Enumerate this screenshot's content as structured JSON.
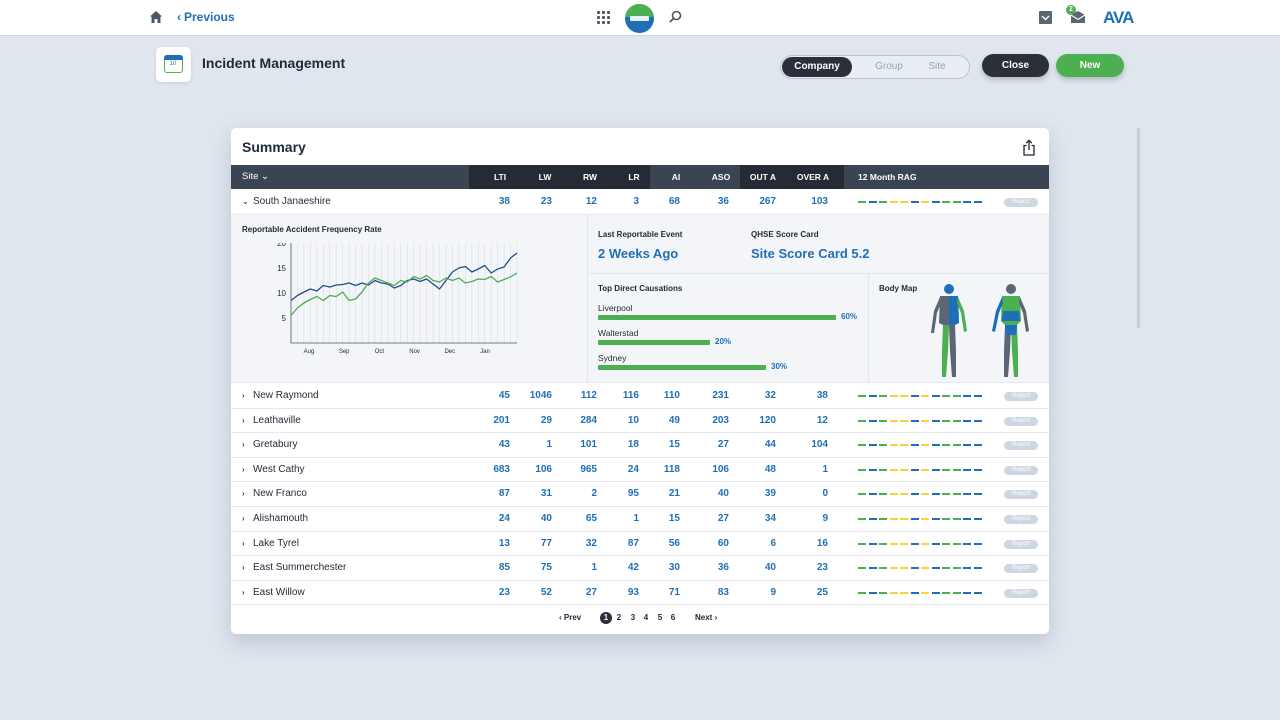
{
  "topbar": {
    "previous_label": "Previous",
    "brand_logo_text": "AVA",
    "mail_badge_count": "2"
  },
  "header": {
    "app_icon_text": "10",
    "title": "Incident Management",
    "scope_options": [
      "Company",
      "Group",
      "Site"
    ],
    "scope_selected": "Company",
    "close_label": "Close",
    "new_label": "New"
  },
  "summary": {
    "title": "Summary",
    "columns": {
      "site": "Site ⌄",
      "lti": "LTI",
      "lw": "LW",
      "rw": "RW",
      "lr": "LR",
      "ai": "AI",
      "aso": "ASO",
      "out_a": "OUT A",
      "over_a": "OVER A",
      "rag": "12 Month RAG"
    },
    "report_label": "Report",
    "rows": [
      {
        "site": "South Janaeshire",
        "expanded": true,
        "values": [
          "38",
          "23",
          "12",
          "3",
          "68",
          "36",
          "267",
          "103"
        ]
      },
      {
        "site": "New Raymond",
        "expanded": false,
        "values": [
          "45",
          "1046",
          "112",
          "116",
          "110",
          "231",
          "32",
          "38"
        ]
      },
      {
        "site": "Leathaville",
        "expanded": false,
        "values": [
          "201",
          "29",
          "284",
          "10",
          "49",
          "203",
          "120",
          "12"
        ]
      },
      {
        "site": "Gretabury",
        "expanded": false,
        "values": [
          "43",
          "1",
          "101",
          "18",
          "15",
          "27",
          "44",
          "104"
        ]
      },
      {
        "site": "West Cathy",
        "expanded": false,
        "values": [
          "683",
          "106",
          "965",
          "24",
          "118",
          "106",
          "48",
          "1"
        ]
      },
      {
        "site": "New Franco",
        "expanded": false,
        "values": [
          "87",
          "31",
          "2",
          "95",
          "21",
          "40",
          "39",
          "0"
        ]
      },
      {
        "site": "Alishamouth",
        "expanded": false,
        "values": [
          "24",
          "40",
          "65",
          "1",
          "15",
          "27",
          "34",
          "9"
        ]
      },
      {
        "site": "Lake Tyrel",
        "expanded": false,
        "values": [
          "13",
          "77",
          "32",
          "87",
          "56",
          "60",
          "6",
          "16"
        ]
      },
      {
        "site": "East Summerchester",
        "expanded": false,
        "values": [
          "85",
          "75",
          "1",
          "42",
          "30",
          "36",
          "40",
          "23"
        ]
      },
      {
        "site": "East Willow",
        "expanded": false,
        "values": [
          "23",
          "52",
          "27",
          "93",
          "71",
          "83",
          "9",
          "25"
        ]
      }
    ],
    "rag_colors": {
      "green": "#4caf50",
      "amber": "#f2d73a",
      "blue": "#1f6fb8"
    }
  },
  "detail": {
    "chart_title": "Reportable Accident Frequency Rate",
    "last_event_label": "Last Reportable Event",
    "last_event_value": "2 Weeks Ago",
    "qhse_label": "QHSE Score Card",
    "qhse_value": "Site Score Card 5.2",
    "causations_title": "Top Direct Causations",
    "causations": [
      {
        "name": "Liverpool",
        "percent": 60,
        "label": "60%"
      },
      {
        "name": "Walterstad",
        "percent": 20,
        "label": "20%"
      },
      {
        "name": "Sydney",
        "percent": 30,
        "label": "30%"
      }
    ],
    "body_map_title": "Body Map"
  },
  "chart_data": {
    "type": "line",
    "title": "Reportable Accident Frequency Rate",
    "x_tick_labels": [
      "Aug",
      "Sep",
      "Oct",
      "Nov",
      "Dec",
      "Jan"
    ],
    "ylim": [
      0,
      20
    ],
    "y_ticks": [
      5,
      10,
      15,
      20
    ],
    "grid": true,
    "series": [
      {
        "color": "#1f4e8c",
        "values": [
          8.5,
          9.5,
          10.2,
          10.8,
          10.4,
          11.5,
          11.2,
          11.6,
          11.7,
          12,
          11.5,
          12,
          11.6,
          12.5,
          12,
          11.8,
          11,
          11.5,
          12.5,
          12.8,
          12.3,
          12.8,
          11.8,
          10.8,
          12.5,
          14.2,
          15,
          15.3,
          14.2,
          14.8,
          15.5,
          14,
          14.8,
          15.2,
          17,
          18
        ]
      },
      {
        "color": "#4caf50",
        "values": [
          5.5,
          7,
          8,
          8.7,
          9.3,
          8.5,
          9.5,
          9.3,
          10.2,
          8.5,
          8.8,
          10.2,
          12,
          13,
          12.5,
          12,
          11.5,
          12.5,
          12.2,
          13.3,
          12.8,
          13.5,
          12.5,
          12.2,
          13,
          12.5,
          13,
          12,
          12.3,
          12.8,
          12.7,
          13.3,
          12.2,
          12.7,
          13.2,
          14
        ]
      }
    ]
  },
  "pagination": {
    "prev_label": "‹ Prev",
    "next_label": "Next ›",
    "pages": [
      "1",
      "2",
      "3",
      "4",
      "5",
      "6"
    ],
    "current": "1"
  }
}
